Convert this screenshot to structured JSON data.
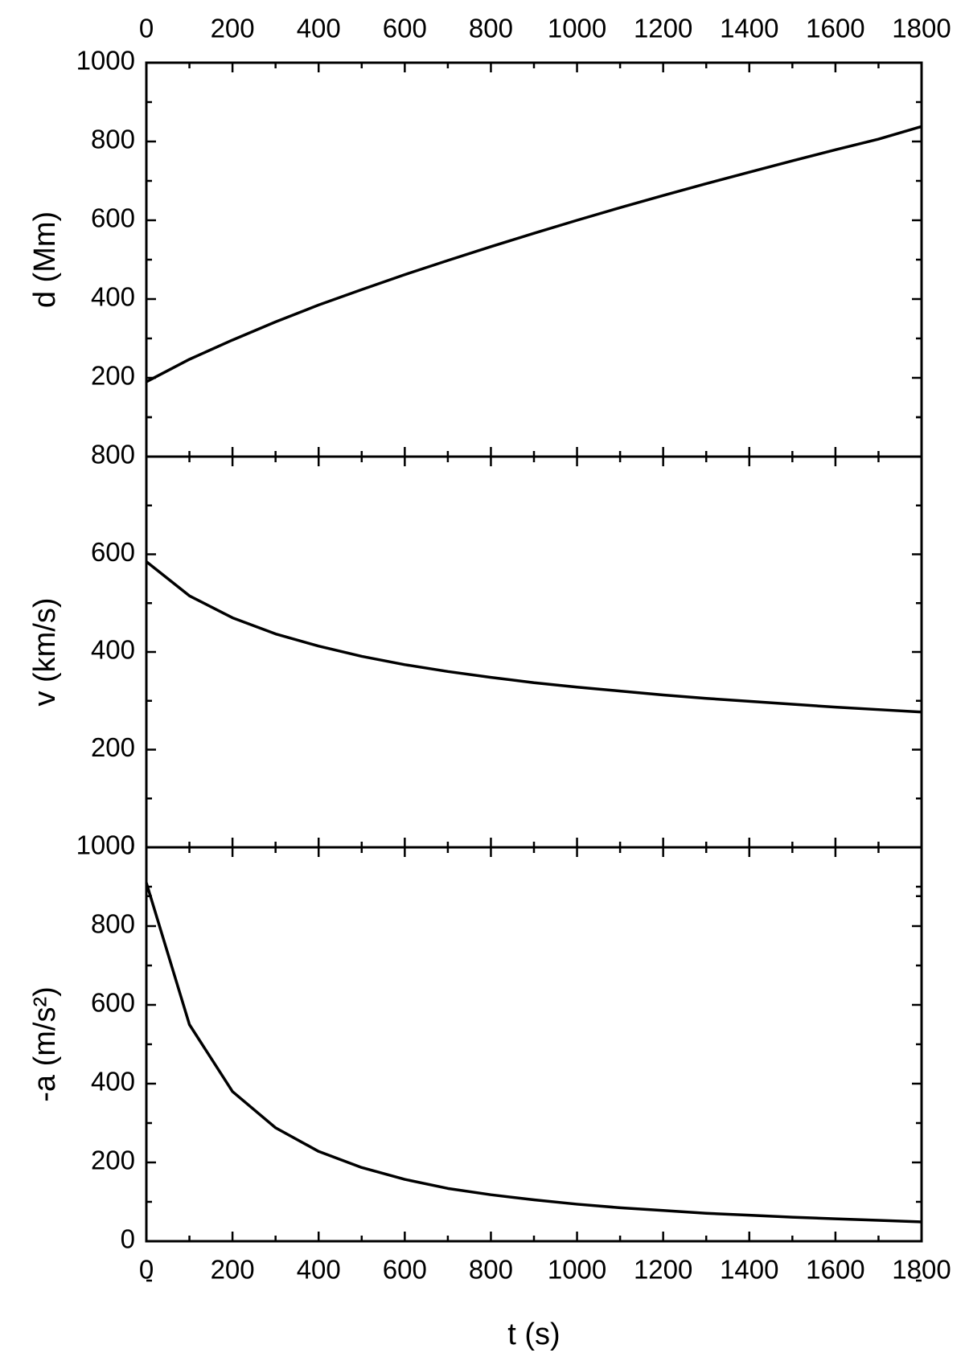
{
  "chart_data": [
    {
      "type": "line",
      "y_label": "d (Mm)",
      "x_tick_labels": "top",
      "x": [
        0,
        100,
        200,
        300,
        400,
        500,
        600,
        700,
        800,
        900,
        1000,
        1100,
        1200,
        1300,
        1400,
        1500,
        1600,
        1700,
        1800
      ],
      "series": [
        {
          "color": "#000000",
          "values": [
            190,
            247,
            296,
            342,
            385,
            424,
            462,
            498,
            533,
            567,
            600,
            632,
            663,
            693,
            722,
            751,
            779,
            806,
            838
          ]
        }
      ],
      "xlim": [
        0,
        1800
      ],
      "xticks": [
        0,
        200,
        400,
        600,
        800,
        1000,
        1200,
        1400,
        1600,
        1800
      ],
      "ylim": [
        0,
        1000
      ],
      "yticks": [
        200,
        400,
        600,
        800,
        1000
      ]
    },
    {
      "type": "line",
      "y_label": "v (km/s)",
      "x_tick_labels": "none",
      "x": [
        0,
        100,
        200,
        300,
        400,
        500,
        600,
        700,
        800,
        900,
        1000,
        1100,
        1200,
        1300,
        1400,
        1500,
        1600,
        1700,
        1800
      ],
      "series": [
        {
          "color": "#000000",
          "values": [
            585,
            515,
            470,
            437,
            412,
            391,
            374,
            360,
            348,
            337,
            328,
            320,
            312,
            305,
            299,
            293,
            287,
            282,
            277
          ]
        }
      ],
      "xlim": [
        0,
        1800
      ],
      "xticks": [
        0,
        200,
        400,
        600,
        800,
        1000,
        1200,
        1400,
        1600,
        1800
      ],
      "ylim": [
        0,
        800
      ],
      "yticks": [
        0,
        200,
        400,
        600,
        800
      ]
    },
    {
      "type": "line",
      "y_label": "-a (m/s²)",
      "x_label": "t (s)",
      "x_tick_labels": "bottom",
      "x": [
        0,
        100,
        200,
        300,
        400,
        500,
        600,
        700,
        800,
        900,
        1000,
        1100,
        1200,
        1300,
        1400,
        1500,
        1600,
        1700,
        1800
      ],
      "series": [
        {
          "color": "#000000",
          "values": [
            910,
            550,
            380,
            288,
            228,
            187,
            157,
            134,
            118,
            105,
            94,
            85,
            78,
            71,
            66,
            61,
            57,
            53,
            49
          ]
        }
      ],
      "xlim": [
        0,
        1800
      ],
      "xticks": [
        0,
        200,
        400,
        600,
        800,
        1000,
        1200,
        1400,
        1600,
        1800
      ],
      "ylim": [
        0,
        1000
      ],
      "yticks": [
        0,
        200,
        400,
        600,
        800,
        1000
      ]
    }
  ]
}
